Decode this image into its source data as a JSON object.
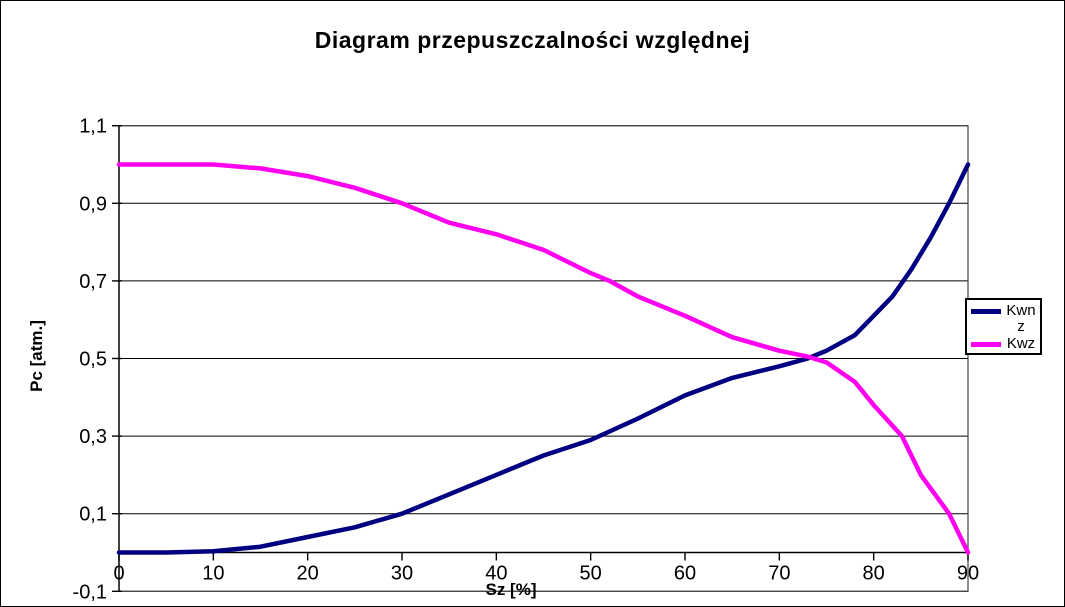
{
  "chart_data": {
    "type": "line",
    "title": "Diagram przepuszczalności względnej",
    "xlabel": "Sz [%]",
    "ylabel": "Pc [atm.]",
    "xlim": [
      0,
      90
    ],
    "ylim": [
      -0.1,
      1.1
    ],
    "grid": "horizontal-only",
    "legend_position": "right",
    "axis_color": "#000000",
    "grid_color": "#000000",
    "frame_color": "#444444",
    "x_ticks": [
      {
        "value": 0,
        "label": "0"
      },
      {
        "value": 10,
        "label": "10"
      },
      {
        "value": 20,
        "label": "20"
      },
      {
        "value": 30,
        "label": "30"
      },
      {
        "value": 40,
        "label": "40"
      },
      {
        "value": 50,
        "label": "50"
      },
      {
        "value": 60,
        "label": "60"
      },
      {
        "value": 70,
        "label": "70"
      },
      {
        "value": 80,
        "label": "80"
      },
      {
        "value": 90,
        "label": "90"
      }
    ],
    "y_ticks": [
      {
        "value": -0.1,
        "label": "-0,1"
      },
      {
        "value": 0.1,
        "label": "0,1"
      },
      {
        "value": 0.3,
        "label": "0,3"
      },
      {
        "value": 0.5,
        "label": "0,5"
      },
      {
        "value": 0.7,
        "label": "0,7"
      },
      {
        "value": 0.9,
        "label": "0,9"
      },
      {
        "value": 1.1,
        "label": "1,1"
      }
    ],
    "series": [
      {
        "name": "Kwn z",
        "color": "#000080",
        "x": [
          0,
          5,
          10,
          15,
          20,
          25,
          30,
          35,
          40,
          45,
          50,
          55,
          60,
          65,
          70,
          73,
          75,
          78,
          80,
          82,
          84,
          86,
          88,
          90
        ],
        "y": [
          0,
          0,
          0.003,
          0.015,
          0.04,
          0.065,
          0.1,
          0.15,
          0.2,
          0.25,
          0.29,
          0.345,
          0.405,
          0.45,
          0.48,
          0.5,
          0.52,
          0.56,
          0.61,
          0.66,
          0.73,
          0.81,
          0.9,
          1.0
        ]
      },
      {
        "name": "Kwz",
        "color": "#FF00F0",
        "x": [
          0,
          5,
          10,
          15,
          20,
          25,
          30,
          35,
          40,
          45,
          50,
          52,
          55,
          60,
          65,
          70,
          73,
          75,
          78,
          80,
          83,
          85,
          88,
          90
        ],
        "y": [
          1.0,
          1.0,
          1.0,
          0.99,
          0.97,
          0.94,
          0.9,
          0.85,
          0.82,
          0.78,
          0.72,
          0.7,
          0.66,
          0.61,
          0.555,
          0.52,
          0.505,
          0.49,
          0.44,
          0.38,
          0.3,
          0.2,
          0.1,
          0.0
        ]
      }
    ]
  }
}
